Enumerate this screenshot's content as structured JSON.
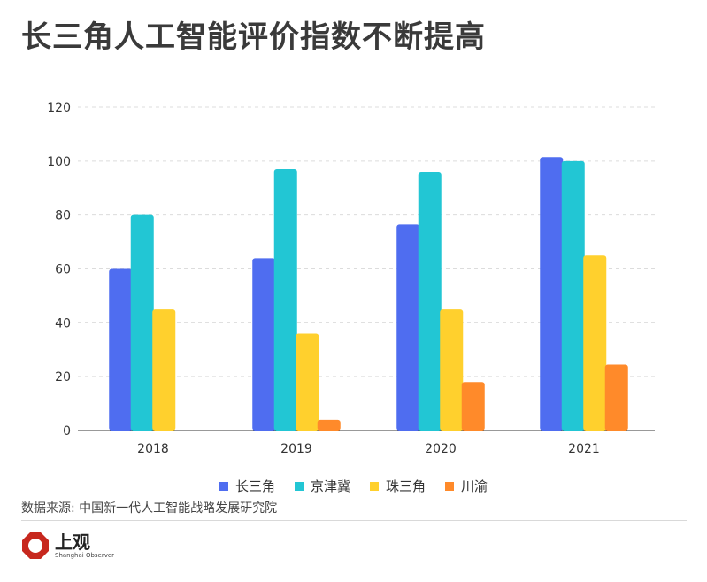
{
  "title": "长三角人工智能评价指数不断提高",
  "source": "数据来源: 中国新一代人工智能战略发展研究院",
  "logo": {
    "icon": "octagon-ring-logo-icon",
    "main": "上观",
    "sub": "Shanghai Observer",
    "color": "#c7281e"
  },
  "chart_data": {
    "type": "bar",
    "title": "长三角人工智能评价指数不断提高",
    "xlabel": "",
    "ylabel": "",
    "categories": [
      "2018",
      "2019",
      "2020",
      "2021"
    ],
    "ylim": [
      0,
      120
    ],
    "yticks": [
      0,
      20,
      40,
      60,
      80,
      100,
      120
    ],
    "grid": true,
    "legend_position": "bottom",
    "series": [
      {
        "name": "长三角",
        "color": "#4f6df0",
        "values": [
          60,
          64,
          76.5,
          101.5
        ]
      },
      {
        "name": "京津冀",
        "color": "#22c6d4",
        "values": [
          80,
          97,
          96,
          100
        ]
      },
      {
        "name": "珠三角",
        "color": "#ffd02d",
        "values": [
          45,
          36,
          45,
          65
        ]
      },
      {
        "name": "川渝",
        "color": "#ff8a2a",
        "values": [
          0,
          4,
          18,
          24.5
        ]
      }
    ]
  }
}
